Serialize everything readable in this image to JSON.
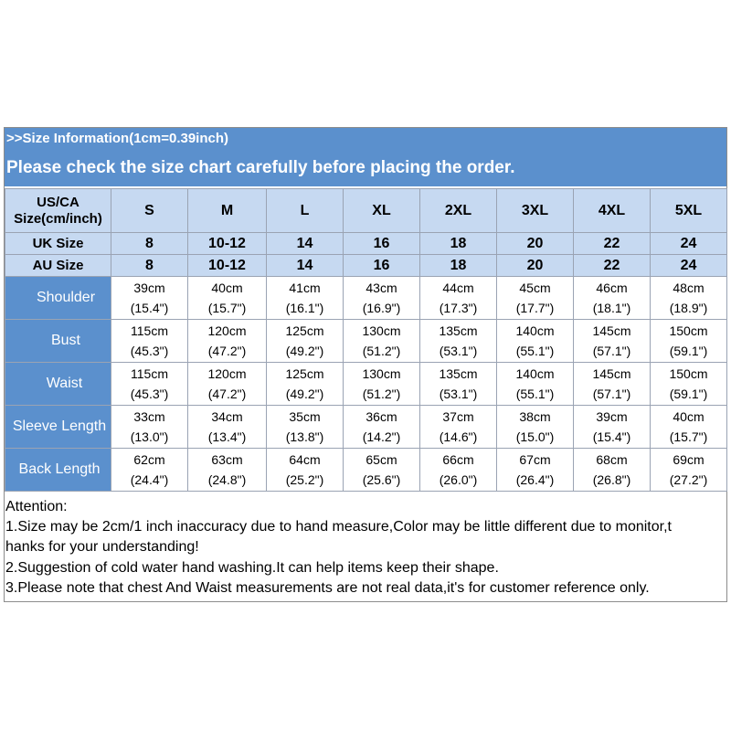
{
  "header": {
    "info_line": ">>Size Information(1cm=0.39inch)",
    "check_line": "Please check the size chart carefully before placing the order."
  },
  "table": {
    "corner_label_line1": "US/CA",
    "corner_label_line2": "Size(cm/inch)",
    "sizes": [
      "S",
      "M",
      "L",
      "XL",
      "2XL",
      "3XL",
      "4XL",
      "5XL"
    ],
    "uk_label": "UK Size",
    "uk_values": [
      "8",
      "10-12",
      "14",
      "16",
      "18",
      "20",
      "22",
      "24"
    ],
    "au_label": "AU Size",
    "au_values": [
      "8",
      "10-12",
      "14",
      "16",
      "18",
      "20",
      "22",
      "24"
    ],
    "measurements": [
      {
        "label": "Shoulder",
        "cm": [
          "39cm",
          "40cm",
          "41cm",
          "43cm",
          "44cm",
          "45cm",
          "46cm",
          "48cm"
        ],
        "inch": [
          "(15.4\")",
          "(15.7\")",
          "(16.1\")",
          "(16.9\")",
          "(17.3\")",
          "(17.7\")",
          "(18.1\")",
          "(18.9\")"
        ]
      },
      {
        "label": "Bust",
        "cm": [
          "115cm",
          "120cm",
          "125cm",
          "130cm",
          "135cm",
          "140cm",
          "145cm",
          "150cm"
        ],
        "inch": [
          "(45.3\")",
          "(47.2\")",
          "(49.2\")",
          "(51.2\")",
          "(53.1\")",
          "(55.1\")",
          "(57.1\")",
          "(59.1\")"
        ]
      },
      {
        "label": "Waist",
        "cm": [
          "115cm",
          "120cm",
          "125cm",
          "130cm",
          "135cm",
          "140cm",
          "145cm",
          "150cm"
        ],
        "inch": [
          "(45.3\")",
          "(47.2\")",
          "(49.2\")",
          "(51.2\")",
          "(53.1\")",
          "(55.1\")",
          "(57.1\")",
          "(59.1\")"
        ]
      },
      {
        "label": "Sleeve Length",
        "cm": [
          "33cm",
          "34cm",
          "35cm",
          "36cm",
          "37cm",
          "38cm",
          "39cm",
          "40cm"
        ],
        "inch": [
          "(13.0\")",
          "(13.4\")",
          "(13.8\")",
          "(14.2\")",
          "(14.6\")",
          "(15.0\")",
          "(15.4\")",
          "(15.7\")"
        ]
      },
      {
        "label": "Back Length",
        "cm": [
          "62cm",
          "63cm",
          "64cm",
          "65cm",
          "66cm",
          "67cm",
          "68cm",
          "69cm"
        ],
        "inch": [
          "(24.4\")",
          "(24.8\")",
          "(25.2\")",
          "(25.6\")",
          "(26.0\")",
          "(26.4\")",
          "(26.8\")",
          "(27.2\")"
        ]
      }
    ]
  },
  "notes": {
    "title": "Attention:",
    "line1a": "1.Size may be 2cm/1 inch inaccuracy due to hand measure,Color may be little different due to monitor,t",
    "line1b": "hanks for your understanding!",
    "line2": "2.Suggestion of cold water hand washing.It can help items keep their shape.",
    "line3": "3.Please note that chest And Waist measurements are not real data,it's for customer reference only."
  },
  "colors": {
    "banner_blue": "#5b90cd",
    "header_light_blue": "#c6d9f1",
    "border_gray": "#9aa3b3"
  }
}
